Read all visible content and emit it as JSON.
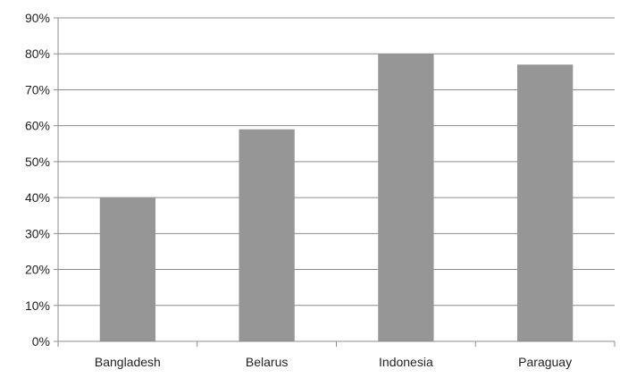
{
  "chart_data": {
    "type": "bar",
    "categories": [
      "Bangladesh",
      "Belarus",
      "Indonesia",
      "Paraguay"
    ],
    "values": [
      40,
      59,
      80,
      77
    ],
    "ylim": [
      0,
      90
    ],
    "y_ticks": [
      0,
      10,
      20,
      30,
      40,
      50,
      60,
      70,
      80,
      90
    ],
    "y_tick_labels": [
      "0%",
      "10%",
      "20%",
      "30%",
      "40%",
      "50%",
      "60%",
      "70%",
      "80%",
      "90%"
    ],
    "bar_color": "#969696",
    "grid": true,
    "title": "",
    "xlabel": "",
    "ylabel": ""
  }
}
